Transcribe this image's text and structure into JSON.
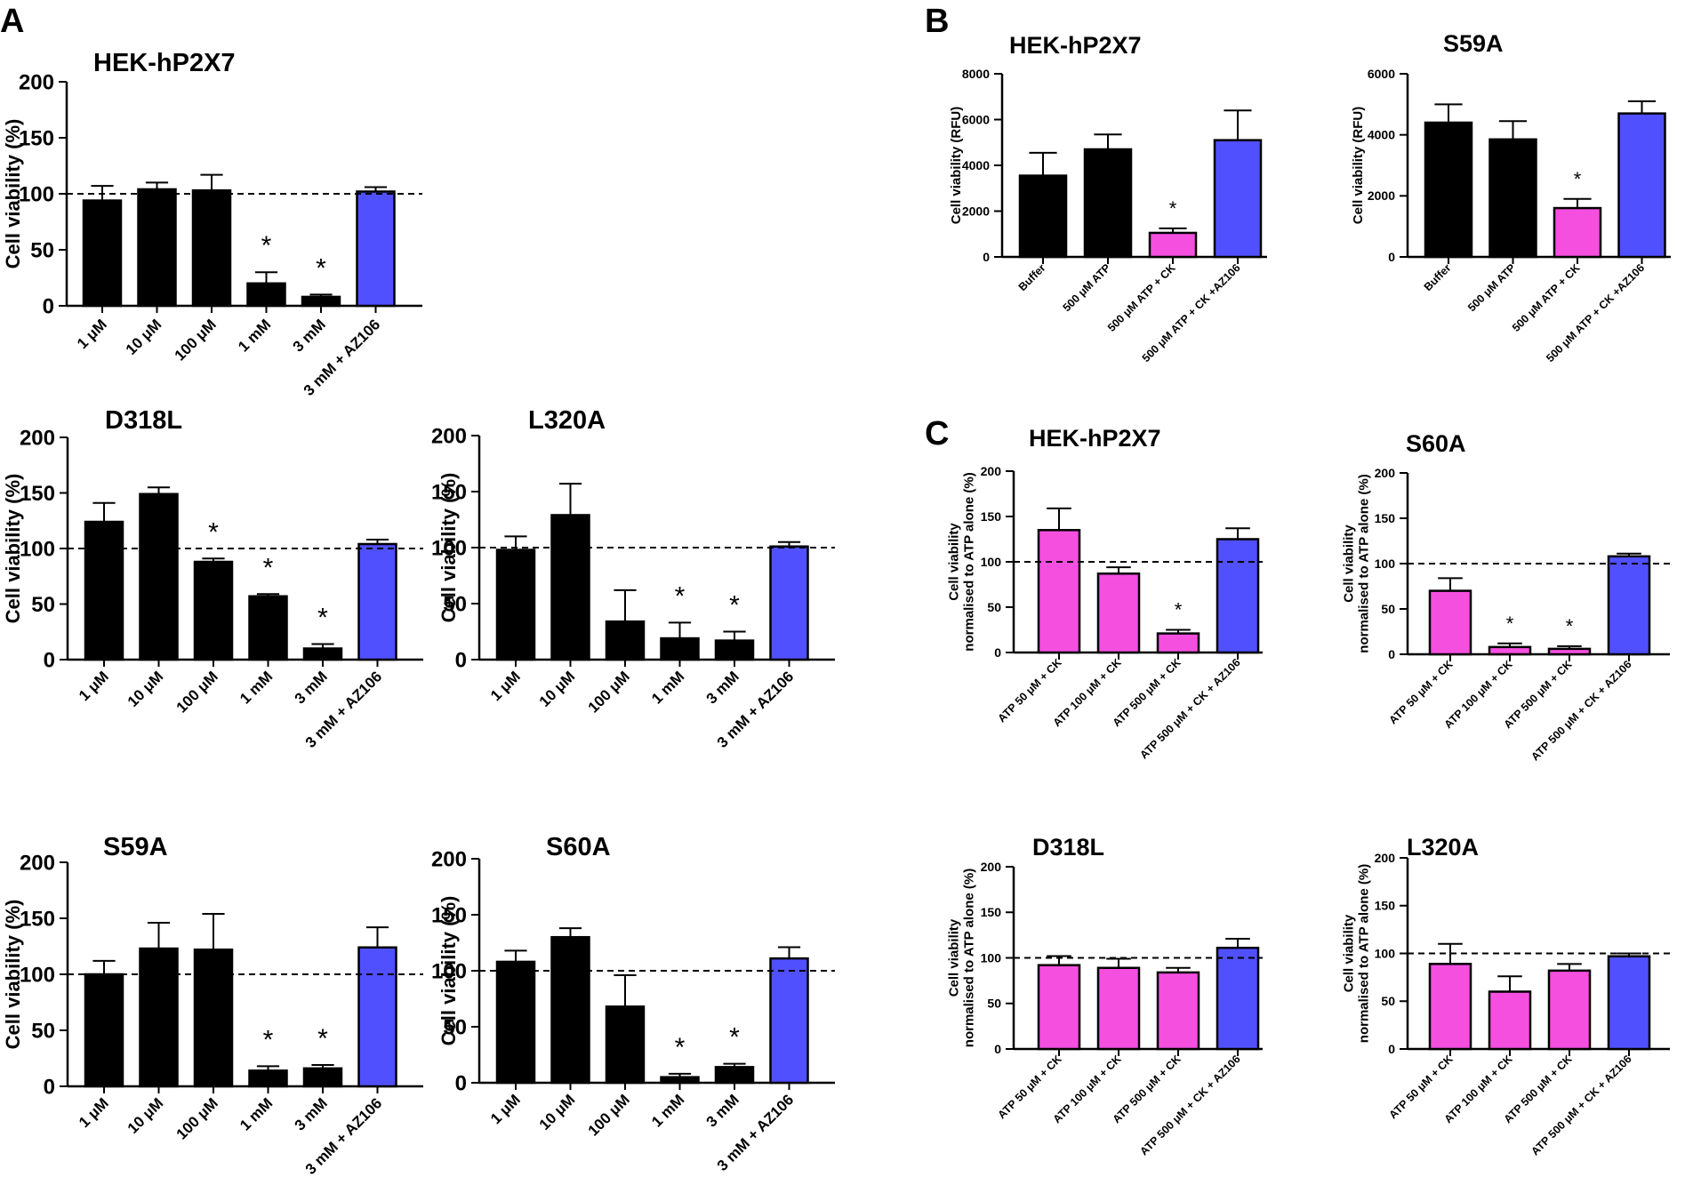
{
  "figure": {
    "panel_labels": [
      "A",
      "B",
      "C"
    ],
    "colors": {
      "black": "#000000",
      "magenta": "#f54fe0",
      "blue": "#5050ff"
    }
  },
  "chart_data": [
    {
      "id": "A1",
      "panel": "A",
      "type": "bar",
      "title": "HEK-hP2X7",
      "ylabel": "Cell viability (%)",
      "ylim": [
        0,
        200
      ],
      "yticks": [
        0,
        50,
        100,
        150,
        200
      ],
      "reference_line": 100,
      "categories": [
        "1 μM",
        "10 μM",
        "100 μM",
        "1 mM",
        "3 mM",
        "3 mM + AZ106"
      ],
      "values": [
        94,
        104,
        103,
        20,
        8,
        102
      ],
      "errors": [
        13,
        6,
        14,
        10,
        2,
        4
      ],
      "significant": [
        false,
        false,
        false,
        true,
        true,
        false
      ],
      "colors": [
        "black",
        "black",
        "black",
        "black",
        "black",
        "blue"
      ]
    },
    {
      "id": "A2",
      "panel": "A",
      "type": "bar",
      "title": "D318L",
      "ylabel": "Cell viability (%)",
      "ylim": [
        0,
        200
      ],
      "yticks": [
        0,
        50,
        100,
        150,
        200
      ],
      "reference_line": 100,
      "categories": [
        "1 μM",
        "10 μM",
        "100 μM",
        "1 mM",
        "3 mM",
        "3 mM + AZ106"
      ],
      "values": [
        124,
        149,
        88,
        57,
        10,
        104
      ],
      "errors": [
        17,
        6,
        3,
        2,
        4,
        4
      ],
      "significant": [
        false,
        false,
        true,
        true,
        true,
        false
      ],
      "colors": [
        "black",
        "black",
        "black",
        "black",
        "black",
        "blue"
      ]
    },
    {
      "id": "A3",
      "panel": "A",
      "type": "bar",
      "title": "L320A",
      "ylabel": "Cell viability (%)",
      "ylim": [
        0,
        200
      ],
      "yticks": [
        0,
        50,
        100,
        150,
        200
      ],
      "reference_line": 100,
      "categories": [
        "1 μM",
        "10 μM",
        "100 μM",
        "1 mM",
        "3 mM",
        "3 mM + AZ106"
      ],
      "values": [
        98,
        129,
        34,
        19,
        17,
        101
      ],
      "errors": [
        12,
        28,
        28,
        14,
        8,
        4
      ],
      "significant": [
        false,
        false,
        false,
        true,
        true,
        false
      ],
      "colors": [
        "black",
        "black",
        "black",
        "black",
        "black",
        "blue"
      ]
    },
    {
      "id": "A4",
      "panel": "A",
      "type": "bar",
      "title": "S59A",
      "ylabel": "Cell viability (%)",
      "ylim": [
        0,
        200
      ],
      "yticks": [
        0,
        50,
        100,
        150,
        200
      ],
      "reference_line": 100,
      "categories": [
        "1 μM",
        "10 μM",
        "100 μM",
        "1 mM",
        "3 mM",
        "3 mM + AZ106"
      ],
      "values": [
        100,
        123,
        122,
        14,
        16,
        124
      ],
      "errors": [
        12,
        23,
        32,
        4,
        3,
        18
      ],
      "significant": [
        false,
        false,
        false,
        true,
        true,
        false
      ],
      "colors": [
        "black",
        "black",
        "black",
        "black",
        "black",
        "blue"
      ]
    },
    {
      "id": "A5",
      "panel": "A",
      "type": "bar",
      "title": "S60A",
      "ylabel": "Cell viability (%)",
      "ylim": [
        0,
        200
      ],
      "yticks": [
        0,
        50,
        100,
        150,
        200
      ],
      "reference_line": 100,
      "categories": [
        "1 μM",
        "10 μM",
        "100 μM",
        "1 mM",
        "3 mM",
        "3 mM + AZ106"
      ],
      "values": [
        108,
        130,
        68,
        5,
        14,
        111
      ],
      "errors": [
        10,
        8,
        28,
        3,
        3,
        10
      ],
      "significant": [
        false,
        false,
        false,
        true,
        true,
        false
      ],
      "colors": [
        "black",
        "black",
        "black",
        "black",
        "black",
        "blue"
      ]
    },
    {
      "id": "B1",
      "panel": "B",
      "type": "bar",
      "title": "HEK-hP2X7",
      "ylabel": "Cell viability (RFU)",
      "ylim": [
        0,
        8000
      ],
      "yticks": [
        0,
        2000,
        4000,
        6000,
        8000
      ],
      "reference_line": null,
      "categories": [
        "Buffer",
        "500 μM ATP",
        "500 μM ATP + CK",
        "500 μM ATP + CK +AZ106"
      ],
      "values": [
        3550,
        4700,
        1050,
        5100
      ],
      "errors": [
        1000,
        650,
        200,
        1300
      ],
      "significant": [
        false,
        false,
        true,
        false
      ],
      "colors": [
        "black",
        "black",
        "magenta",
        "blue"
      ]
    },
    {
      "id": "B2",
      "panel": "B",
      "type": "bar",
      "title": "S59A",
      "ylabel": "Cell viability (RFU)",
      "ylim": [
        0,
        6000
      ],
      "yticks": [
        0,
        2000,
        4000,
        6000
      ],
      "reference_line": null,
      "categories": [
        "Buffer",
        "500 μM ATP",
        "500 μM ATP + CK",
        "500 μM ATP + CK +AZ106"
      ],
      "values": [
        4400,
        3850,
        1600,
        4700
      ],
      "errors": [
        600,
        600,
        300,
        400
      ],
      "significant": [
        false,
        false,
        true,
        false
      ],
      "colors": [
        "black",
        "black",
        "magenta",
        "blue"
      ]
    },
    {
      "id": "C1",
      "panel": "C",
      "type": "bar",
      "title": "HEK-hP2X7",
      "ylabel": "Cell viability\nnormalised to ATP alone (%)",
      "ylim": [
        0,
        200
      ],
      "yticks": [
        0,
        50,
        100,
        150,
        200
      ],
      "reference_line": 100,
      "categories": [
        "ATP 50 μM + CK",
        "ATP 100 μM + CK",
        "ATP 500 μM + CK",
        "ATP 500 μM + CK + AZ106"
      ],
      "values": [
        135,
        87,
        21,
        125
      ],
      "errors": [
        24,
        7,
        4,
        12
      ],
      "significant": [
        false,
        false,
        true,
        false
      ],
      "colors": [
        "magenta",
        "magenta",
        "magenta",
        "blue"
      ]
    },
    {
      "id": "C2",
      "panel": "C",
      "type": "bar",
      "title": "S60A",
      "ylabel": "Cell viability\nnormalised to ATP alone (%)",
      "ylim": [
        0,
        200
      ],
      "yticks": [
        0,
        50,
        100,
        150,
        200
      ],
      "reference_line": 100,
      "categories": [
        "ATP 50 μM + CK",
        "ATP 100 μM + CK",
        "ATP 500 μM + CK",
        "ATP 500 μM + CK + AZ106"
      ],
      "values": [
        70,
        8,
        6,
        108
      ],
      "errors": [
        14,
        4,
        3,
        3
      ],
      "significant": [
        false,
        true,
        true,
        false
      ],
      "colors": [
        "magenta",
        "magenta",
        "magenta",
        "blue"
      ]
    },
    {
      "id": "C3",
      "panel": "C",
      "type": "bar",
      "title": "D318L",
      "ylabel": "Cell viability\nnormalised to ATP alone (%)",
      "ylim": [
        0,
        200
      ],
      "yticks": [
        0,
        50,
        100,
        150,
        200
      ],
      "reference_line": 100,
      "categories": [
        "ATP 50 μM + CK",
        "ATP 100 μM + CK",
        "ATP 500 μM + CK",
        "ATP 500 μM + CK + AZ106"
      ],
      "values": [
        92,
        89,
        84,
        111
      ],
      "errors": [
        10,
        10,
        5,
        10
      ],
      "significant": [
        false,
        false,
        false,
        false
      ],
      "colors": [
        "magenta",
        "magenta",
        "magenta",
        "blue"
      ]
    },
    {
      "id": "C4",
      "panel": "C",
      "type": "bar",
      "title": "L320A",
      "ylabel": "Cell viability\nnormalised to ATP alone (%)",
      "ylim": [
        0,
        200
      ],
      "yticks": [
        0,
        50,
        100,
        150,
        200
      ],
      "reference_line": 100,
      "categories": [
        "ATP 50 μM + CK",
        "ATP 100 μM + CK",
        "ATP 500 μM + CK",
        "ATP 500 μM + CK + AZ106"
      ],
      "values": [
        89,
        60,
        82,
        97
      ],
      "errors": [
        21,
        16,
        7,
        3
      ],
      "significant": [
        false,
        false,
        false,
        false
      ],
      "colors": [
        "magenta",
        "magenta",
        "magenta",
        "blue"
      ]
    }
  ]
}
